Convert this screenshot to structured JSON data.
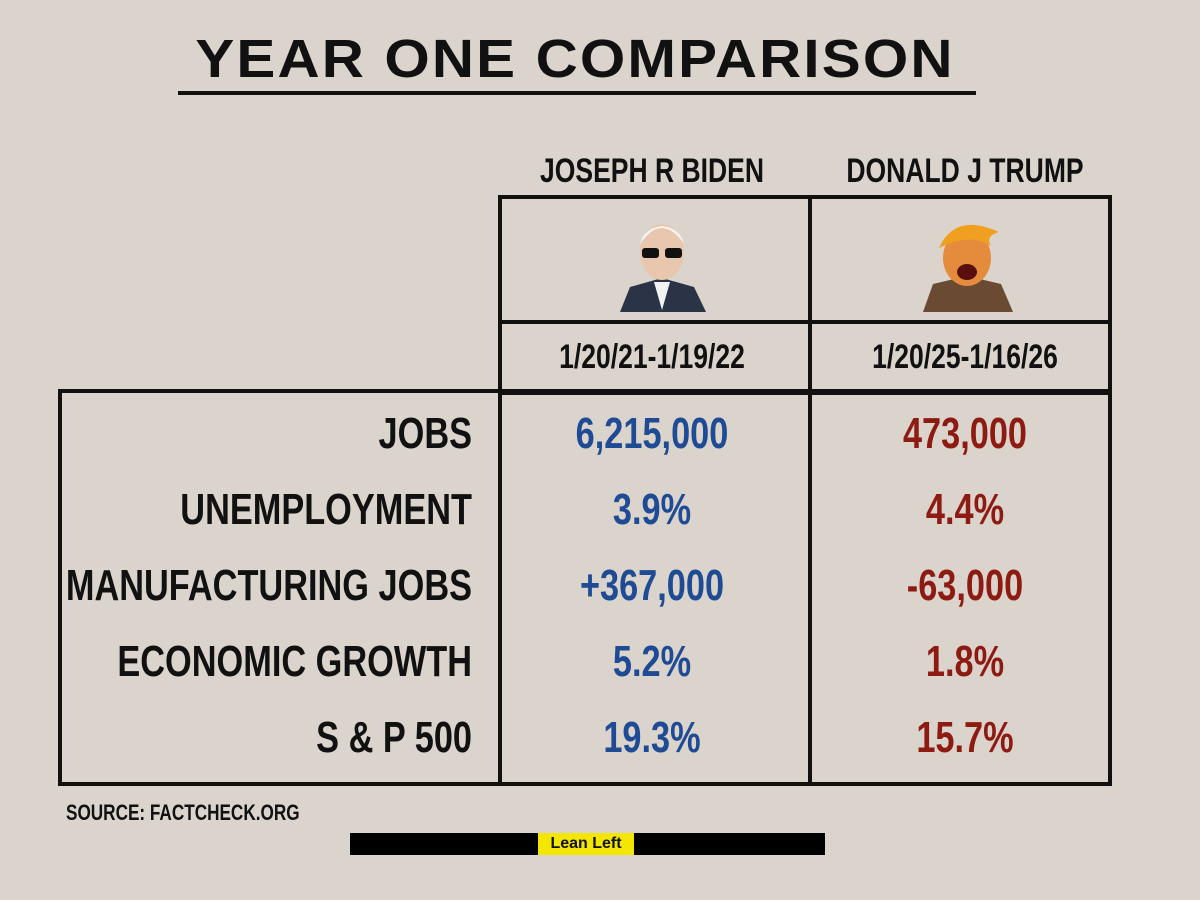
{
  "header": {
    "title": "YEAR ONE COMPARISON"
  },
  "table": {
    "columns": [
      {
        "name": "JOSEPH R BIDEN",
        "dates": "1/20/21-1/19/22",
        "color": "#1f4a94"
      },
      {
        "name": "DONALD J TRUMP",
        "dates": "1/20/25-1/16/26",
        "color": "#8e1b12"
      }
    ],
    "rows": [
      [
        "JOBS",
        "6,215,000",
        "473,000"
      ],
      [
        "UNEMPLOYMENT",
        "3.9%",
        "4.4%"
      ],
      [
        "MANUFACTURING JOBS",
        "+367,000",
        "-63,000"
      ],
      [
        "ECONOMIC GROWTH",
        "5.2%",
        "1.8%"
      ],
      [
        "S & P 500",
        "19.3%",
        "15.7%"
      ]
    ]
  },
  "source": "SOURCE: FACTCHECK.ORG",
  "footer": {
    "brand": "Lean Left"
  }
}
